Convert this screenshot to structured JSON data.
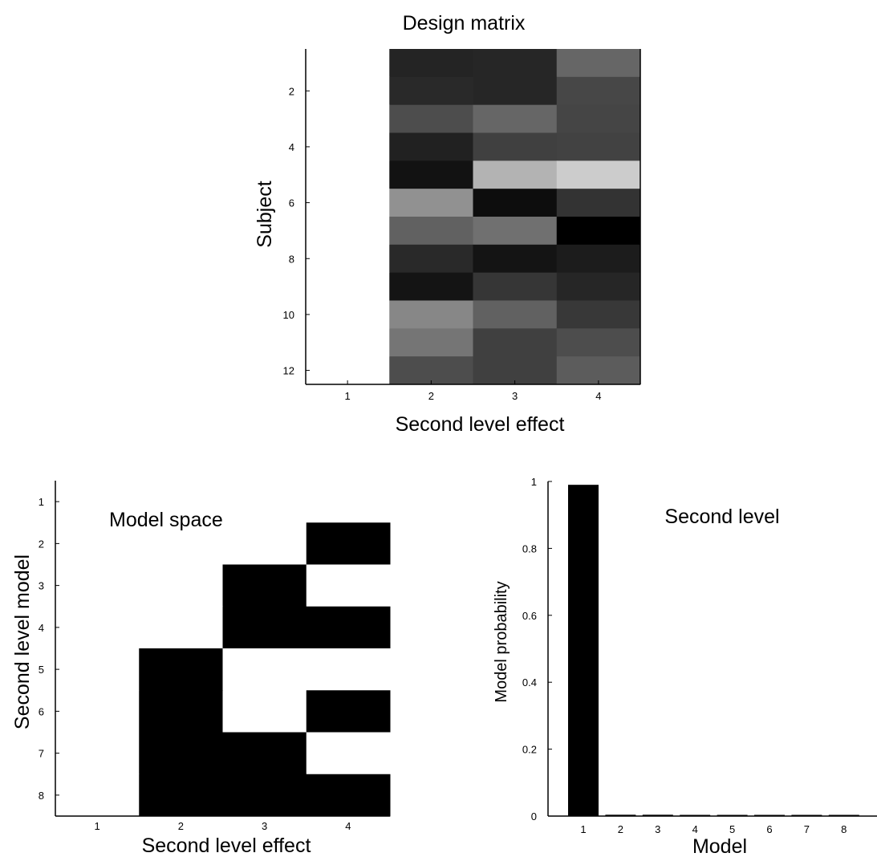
{
  "chart_data": [
    {
      "type": "heatmap",
      "title": "Design matrix",
      "xlabel": "Second level effect",
      "ylabel": "Subject",
      "x_ticks": [
        "1",
        "2",
        "3",
        "4"
      ],
      "y_ticks": [
        "2",
        "4",
        "6",
        "8",
        "10",
        "12"
      ],
      "colormap": "grayscale",
      "value_range": [
        0,
        1
      ],
      "matrix": [
        [
          1.0,
          0.14,
          0.15,
          0.4
        ],
        [
          1.0,
          0.16,
          0.15,
          0.28
        ],
        [
          1.0,
          0.3,
          0.4,
          0.27
        ],
        [
          1.0,
          0.13,
          0.25,
          0.26
        ],
        [
          1.0,
          0.07,
          0.7,
          0.8
        ],
        [
          1.0,
          0.57,
          0.05,
          0.2
        ],
        [
          1.0,
          0.38,
          0.44,
          0.0
        ],
        [
          1.0,
          0.16,
          0.08,
          0.11
        ],
        [
          1.0,
          0.08,
          0.21,
          0.15
        ],
        [
          1.0,
          0.53,
          0.38,
          0.22
        ],
        [
          1.0,
          0.46,
          0.25,
          0.3
        ],
        [
          1.0,
          0.3,
          0.25,
          0.36
        ]
      ]
    },
    {
      "type": "heatmap",
      "title": "Model space",
      "xlabel": "Second level effect",
      "ylabel": "Second level model",
      "x_ticks": [
        "1",
        "2",
        "3",
        "4"
      ],
      "y_ticks": [
        "1",
        "2",
        "3",
        "4",
        "5",
        "6",
        "7",
        "8"
      ],
      "colormap": "binary",
      "matrix": [
        [
          1,
          1,
          1,
          1
        ],
        [
          1,
          1,
          1,
          0
        ],
        [
          1,
          1,
          0,
          1
        ],
        [
          1,
          1,
          0,
          0
        ],
        [
          1,
          0,
          1,
          1
        ],
        [
          1,
          0,
          1,
          0
        ],
        [
          1,
          0,
          0,
          1
        ],
        [
          1,
          0,
          0,
          0
        ]
      ]
    },
    {
      "type": "bar",
      "title": "Second level",
      "xlabel": "Model",
      "ylabel": "Model probability",
      "categories": [
        "1",
        "2",
        "3",
        "4",
        "5",
        "6",
        "7",
        "8"
      ],
      "values": [
        0.99,
        0.004,
        0.004,
        0.003,
        0.003,
        0.003,
        0.002,
        0.002
      ],
      "ylim": [
        0,
        1
      ],
      "y_ticks": [
        "0",
        "0.2",
        "0.4",
        "0.6",
        "0.8",
        "1"
      ],
      "bar_color": "#000000"
    }
  ]
}
